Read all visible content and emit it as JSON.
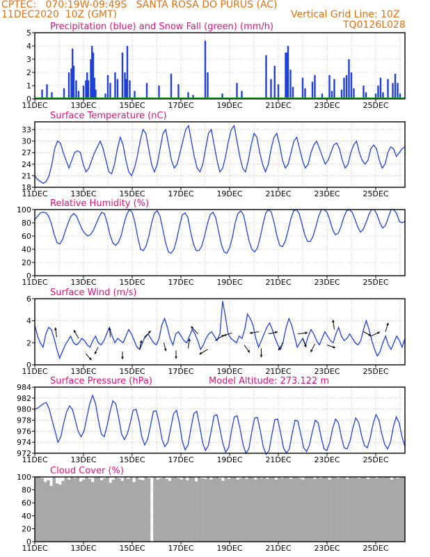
{
  "header": {
    "line1": "CPTEC:   070:19W-09:49S   SANTA ROSA DO PURUS (AC)",
    "line2": "11DEC2020  10Z (GMT)",
    "grid_note": "Vertical Grid Line: 10Z",
    "code": "TQ0126L028",
    "model_altitude": "Model Altitude: 273.122  m"
  },
  "colors": {
    "header": "#e07010",
    "title": "#e0107a",
    "line": "#1f3fd8",
    "snow": "#10b020",
    "cloud": "#a8a8a8"
  },
  "x_ticks": [
    "11DEC",
    "13DEC",
    "15DEC",
    "17DEC",
    "19DEC",
    "21DEC",
    "23DEC",
    "25DEC"
  ],
  "chart_data": [
    {
      "type": "bar",
      "title": "Precipitation (blue) and Snow Fall (green) (mm/h)",
      "ylim": [
        0,
        5
      ],
      "yticks": [
        0,
        1,
        2,
        3,
        4,
        5
      ],
      "x": "day index 0-15 from 11DEC 10Z",
      "series": [
        {
          "name": "Precipitation",
          "values": [
            [
              0.3,
              0.7
            ],
            [
              0.5,
              1.1
            ],
            [
              0.7,
              0.5
            ],
            [
              1.2,
              0.8
            ],
            [
              1.4,
              2.0
            ],
            [
              1.5,
              2.3
            ],
            [
              1.55,
              3.8
            ],
            [
              1.6,
              2.5
            ],
            [
              1.7,
              1.4
            ],
            [
              1.8,
              0.6
            ],
            [
              2.0,
              1.0
            ],
            [
              2.1,
              1.4
            ],
            [
              2.15,
              2.0
            ],
            [
              2.2,
              1.4
            ],
            [
              2.3,
              3.0
            ],
            [
              2.35,
              4.0
            ],
            [
              2.4,
              3.5
            ],
            [
              2.45,
              1.6
            ],
            [
              2.5,
              0.7
            ],
            [
              2.9,
              0.4
            ],
            [
              3.0,
              1.8
            ],
            [
              3.1,
              1.2
            ],
            [
              3.3,
              2.0
            ],
            [
              3.4,
              1.5
            ],
            [
              3.6,
              3.5
            ],
            [
              3.7,
              2.0
            ],
            [
              3.75,
              1.5
            ],
            [
              3.8,
              4.0
            ],
            [
              3.9,
              1.4
            ],
            [
              4.1,
              0.6
            ],
            [
              4.6,
              1.2
            ],
            [
              5.1,
              1.0
            ],
            [
              5.6,
              1.9
            ],
            [
              5.9,
              1.1
            ],
            [
              6.3,
              0.5
            ],
            [
              6.5,
              0.3
            ],
            [
              7.0,
              4.4
            ],
            [
              7.1,
              2.0
            ],
            [
              7.7,
              0.4
            ],
            [
              8.3,
              1.2
            ],
            [
              8.5,
              0.6
            ],
            [
              9.5,
              3.3
            ],
            [
              9.7,
              1.5
            ],
            [
              9.85,
              2.5
            ],
            [
              10.0,
              1.1
            ],
            [
              10.3,
              3.5
            ],
            [
              10.35,
              3.5
            ],
            [
              10.4,
              4.0
            ],
            [
              10.5,
              2.2
            ],
            [
              10.6,
              0.9
            ],
            [
              11.0,
              1.6
            ],
            [
              11.1,
              0.8
            ],
            [
              11.4,
              1.3
            ],
            [
              11.5,
              1.8
            ],
            [
              11.8,
              0.4
            ],
            [
              12.1,
              1.8
            ],
            [
              12.2,
              0.6
            ],
            [
              12.3,
              1.5
            ],
            [
              12.6,
              0.7
            ],
            [
              12.7,
              1.6
            ],
            [
              12.8,
              1.8
            ],
            [
              12.9,
              3.0
            ],
            [
              13.0,
              2.0
            ],
            [
              13.1,
              0.8
            ],
            [
              13.5,
              1.0
            ],
            [
              13.6,
              0.5
            ],
            [
              14.0,
              0.4
            ],
            [
              14.1,
              1.0
            ],
            [
              14.2,
              1.6
            ],
            [
              14.3,
              0.5
            ],
            [
              14.5,
              1.5
            ],
            [
              14.7,
              1.2
            ],
            [
              14.8,
              1.9
            ],
            [
              14.9,
              1.2
            ],
            [
              15.0,
              0.4
            ]
          ]
        },
        {
          "name": "Snow Fall",
          "values": [
            0
          ]
        }
      ]
    },
    {
      "type": "line",
      "title": "Surface Temperature (nC)",
      "ylim": [
        18,
        35
      ],
      "yticks": [
        18,
        21,
        24,
        27,
        30,
        33
      ],
      "values": [
        21,
        20,
        19.5,
        19,
        19.5,
        21,
        24,
        28,
        30,
        29.5,
        27,
        25,
        23,
        25,
        27,
        27.5,
        27,
        24,
        22,
        23,
        25,
        27,
        28.5,
        30,
        28,
        25,
        22,
        21.5,
        24,
        28,
        31,
        29,
        25,
        22,
        21,
        23,
        26,
        30,
        33,
        32,
        28,
        24,
        22,
        24,
        28,
        32,
        33,
        29,
        25,
        23,
        24,
        27,
        30,
        33,
        34,
        30,
        26,
        23,
        22,
        24,
        28,
        32,
        33,
        29,
        25,
        22,
        23,
        26,
        30,
        33,
        34,
        30,
        26,
        23,
        22,
        25,
        29,
        32,
        31,
        27,
        24,
        22,
        24,
        28,
        31,
        32,
        29,
        25,
        23,
        24,
        27,
        30,
        31,
        28,
        25,
        23,
        24,
        27,
        29,
        30,
        28,
        26,
        24,
        25,
        27,
        29,
        29.5,
        28,
        25,
        23,
        24,
        27,
        29,
        30,
        27,
        25,
        24,
        25,
        28,
        29,
        28,
        25,
        23,
        24,
        27,
        28.5,
        28,
        26,
        27,
        28,
        28.5
      ]
    },
    {
      "type": "line",
      "title": "Relative Humidity (%)",
      "ylim": [
        0,
        100
      ],
      "yticks": [
        0,
        20,
        40,
        60,
        80,
        100
      ],
      "values": [
        85,
        90,
        95,
        96,
        95,
        90,
        78,
        62,
        50,
        48,
        55,
        68,
        80,
        90,
        94,
        90,
        80,
        70,
        64,
        60,
        62,
        68,
        78,
        88,
        96,
        94,
        80,
        62,
        50,
        46,
        50,
        60,
        78,
        92,
        100,
        96,
        80,
        58,
        40,
        38,
        45,
        60,
        80,
        95,
        98,
        90,
        70,
        50,
        36,
        34,
        40,
        55,
        75,
        92,
        95,
        88,
        66,
        48,
        38,
        38,
        45,
        60,
        78,
        92,
        96,
        88,
        68,
        48,
        36,
        34,
        42,
        58,
        80,
        94,
        98,
        92,
        72,
        52,
        40,
        36,
        42,
        58,
        78,
        95,
        100,
        96,
        80,
        60,
        46,
        44,
        52,
        68,
        86,
        98,
        100,
        94,
        78,
        62,
        52,
        52,
        60,
        74,
        90,
        100,
        100,
        96,
        84,
        70,
        62,
        64,
        74,
        88,
        98,
        100,
        96,
        86,
        74,
        66,
        70,
        80,
        92,
        100,
        100,
        92,
        80,
        72,
        76,
        88,
        100,
        100,
        94,
        82,
        80,
        82
      ]
    },
    {
      "type": "line",
      "title": "Surface Wind (m/s)",
      "ylim": [
        0,
        6
      ],
      "yticks": [
        0,
        2,
        4,
        6
      ],
      "values": [
        3.6,
        2.6,
        2.0,
        1.6,
        2.8,
        3.4,
        3.2,
        2.4,
        1.4,
        0.6,
        1.2,
        1.8,
        2.2,
        2.6,
        2.0,
        1.8,
        2.0,
        2.4,
        2.2,
        1.8,
        1.6,
        2.2,
        2.6,
        2.0,
        1.8,
        2.2,
        2.8,
        3.4,
        2.6,
        2.0,
        2.4,
        2.2,
        2.0,
        2.6,
        3.2,
        2.8,
        2.2,
        1.6,
        1.4,
        2.0,
        2.6,
        2.8,
        2.4,
        2.0,
        1.8,
        2.4,
        3.6,
        4.2,
        3.4,
        2.4,
        1.8,
        2.8,
        3.0,
        2.6,
        2.2,
        2.0,
        2.6,
        3.2,
        2.8,
        2.2,
        1.4,
        1.8,
        2.4,
        2.8,
        3.0,
        2.6,
        2.2,
        2.8,
        5.8,
        4.4,
        2.8,
        2.4,
        2.2,
        2.0,
        2.6,
        2.4,
        3.2,
        4.6,
        4.2,
        3.6,
        2.4,
        1.6,
        2.2,
        2.8,
        3.4,
        3.8,
        3.2,
        2.4,
        1.8,
        1.4,
        2.2,
        3.4,
        4.2,
        3.6,
        2.6,
        1.6,
        2.0,
        2.4,
        1.8,
        2.6,
        3.2,
        2.8,
        2.2,
        1.8,
        2.4,
        3.0,
        2.6,
        2.2,
        2.0,
        2.8,
        3.4,
        2.6,
        2.2,
        2.4,
        2.8,
        2.4,
        2.0,
        1.8,
        2.2,
        3.2,
        4.0,
        3.2,
        2.2,
        1.4,
        0.8,
        1.2,
        2.0,
        2.6,
        1.8,
        1.4,
        2.0,
        2.6,
        2.2,
        1.6,
        2.4
      ]
    },
    {
      "type": "line",
      "title": "Surface Pressure (hPa)",
      "ylim": [
        972,
        984
      ],
      "yticks": [
        972,
        974,
        976,
        978,
        980,
        982,
        984
      ],
      "values": [
        980,
        980.2,
        980.6,
        981,
        981.2,
        980,
        978,
        976,
        974,
        975,
        977.5,
        979.5,
        980.6,
        980,
        978,
        976,
        975,
        976,
        978.5,
        981,
        982.5,
        981,
        978,
        975.5,
        975,
        977,
        979.5,
        981.5,
        981,
        978.5,
        975.5,
        974.5,
        975.5,
        977.5,
        979.8,
        980,
        978,
        975,
        973.5,
        974.5,
        977,
        979.6,
        979.7,
        977.5,
        974.5,
        973.2,
        974,
        976.5,
        979.2,
        979.8,
        977.5,
        974.2,
        972.6,
        973.5,
        976.5,
        979.2,
        979.6,
        977,
        974,
        972.5,
        973.4,
        976,
        978.8,
        979,
        976.5,
        973.8,
        972.2,
        973,
        976,
        978.6,
        978.8,
        976.4,
        973.6,
        972,
        972.8,
        975.8,
        978.4,
        978.5,
        976,
        973.2,
        971.8,
        972.5,
        975.4,
        978.1,
        978.2,
        975.7,
        973,
        972,
        972.8,
        975.6,
        978,
        977.8,
        975.4,
        973,
        972.3,
        973.5,
        976,
        978,
        977.5,
        975,
        972.8,
        972.5,
        974,
        976.5,
        978.2,
        977.5,
        975,
        973,
        972.8,
        974.2,
        976.6,
        978.4,
        977.6,
        975.2,
        973.4,
        973,
        974.8,
        977.4,
        979,
        978,
        975.5,
        973.6,
        972.8,
        974,
        976.8,
        978.6,
        977.5,
        975,
        973.2
      ]
    },
    {
      "type": "area",
      "title": "Cloud Cover (%)",
      "ylim": [
        0,
        100
      ],
      "yticks": [
        0,
        20,
        40,
        60,
        80,
        100
      ],
      "values": [
        100,
        100,
        98,
        92,
        95,
        86,
        100,
        90,
        88,
        94,
        100,
        96,
        100,
        98,
        100,
        93,
        96,
        100,
        97,
        92,
        99,
        100,
        95,
        98,
        100,
        91,
        96,
        100,
        98,
        94,
        100,
        97,
        99,
        92,
        100,
        96,
        95,
        100,
        98,
        0,
        100,
        96,
        98,
        100,
        97,
        94,
        99,
        100,
        98,
        96,
        100,
        95,
        100,
        99,
        93,
        100,
        98,
        97,
        100,
        96,
        99,
        100,
        98,
        94,
        100,
        97,
        99,
        100,
        96,
        98,
        100,
        97,
        100,
        99,
        96,
        100,
        98,
        100,
        97,
        99,
        100,
        96,
        100,
        98,
        100,
        99,
        97,
        100,
        100,
        98,
        96,
        100,
        99,
        100,
        97,
        100,
        98,
        100,
        99,
        96,
        100,
        100,
        98,
        99,
        100,
        97,
        100,
        99,
        100,
        98,
        100,
        100,
        97,
        99,
        100,
        98,
        100,
        99,
        100,
        100,
        96,
        100,
        98,
        100,
        100
      ]
    }
  ]
}
